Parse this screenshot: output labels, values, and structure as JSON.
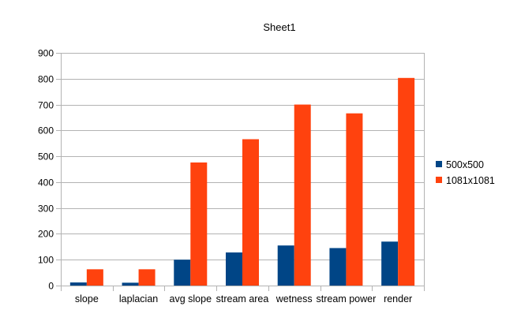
{
  "chart_data": {
    "type": "bar",
    "title": "Sheet1",
    "xlabel": "",
    "ylabel": "",
    "categories": [
      "slope",
      "laplacian",
      "avg slope",
      "stream  area",
      "wetness",
      "stream power",
      "render"
    ],
    "series": [
      {
        "name": "500x500",
        "color": "#004586",
        "values": [
          12,
          11,
          100,
          128,
          155,
          145,
          170
        ]
      },
      {
        "name": "1081x1081",
        "color": "#ff420e",
        "values": [
          63,
          63,
          476,
          566,
          700,
          666,
          803
        ]
      }
    ],
    "ylim": [
      0,
      900
    ],
    "yticks": [
      0,
      100,
      200,
      300,
      400,
      500,
      600,
      700,
      800,
      900
    ],
    "grid": true,
    "legend_position": "right"
  }
}
